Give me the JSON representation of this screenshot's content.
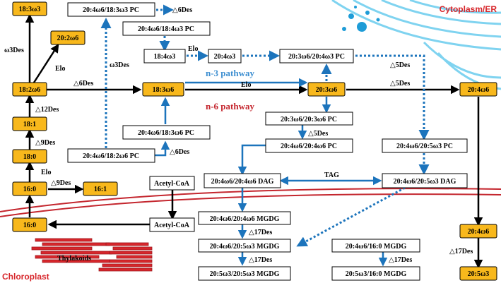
{
  "labels": {
    "cytoplasm": "Cytoplasm/ER",
    "chloroplast": "Chloroplast",
    "thylakoids": "Thylakoids",
    "n3_pathway": "n-3 pathway",
    "n6_pathway": "n-6 pathway"
  },
  "nodes": {
    "n18_3w3": "18:3ω3",
    "n20_2w6": "20:2ω6",
    "n18_2w6": "18:2ω6",
    "n18_1": "18:1",
    "n18_0": "18:0",
    "n16_0a": "16:0",
    "n16_1": "16:1",
    "n16_0b": "16:0",
    "n18_3w6": "18:3ω6",
    "n20_3w6": "20:3ω6",
    "n20_4w6": "20:4ω6",
    "n20_4w6_c": "20:4ω6",
    "n20_5w3": "20:5ω3",
    "pc_18_3w3": "20:4ω6/18:3ω3 PC",
    "pc_18_4w3": "20:4ω6/18:4ω3 PC",
    "n18_4w3": "18:4ω3",
    "n20_4w3": "20:4ω3",
    "pc_20_3w6_20_4w3": "20:3ω6/20:4ω3 PC",
    "pc_20_3w6_20_3w6": "20:3ω6/20:3ω6 PC",
    "pc_20_4w6_20_4w6": "20:4ω6/20:4ω6 PC",
    "pc_20_4w6_18_3w6": "20:4ω6/18:3ω6 PC",
    "pc_20_4w6_18_2w6": "20:4ω6/18:2ω6 PC",
    "pc_20_4w6_20_5w3": "20:4ω6/20:5ω3 PC",
    "dag_20_4w6_20_4w6": "20:4ω6/20:4ω6 DAG",
    "dag_20_4w6_20_5w3": "20:4ω6/20:5ω3 DAG",
    "acetyl_a": "Acetyl-CoA",
    "acetyl_b": "Acetyl-CoA",
    "mgdg_20_4w6_20_4w6": "20:4ω6/20:4ω6 MGDG",
    "mgdg_20_4w6_20_5w3": "20:4ω6/20:5ω3 MGDG",
    "mgdg_20_5w3_20_5w3": "20:5ω3/20:5ω3 MGDG",
    "mgdg_20_4w6_16_0": "20:4ω6/16:0 MGDG",
    "mgdg_20_5w3_16_0": "20:5ω3/16:0 MGDG"
  },
  "edges": {
    "w3des_a": "ω3Des",
    "elo_a": "Elo",
    "d12des": "△12Des",
    "d9des_a": "△9Des",
    "elo_b": "Elo",
    "d9des_b": "△9Des",
    "d6des_a": "△6Des",
    "elo_c": "Elo",
    "d5des_a": "△5Des",
    "d6des_b": "△6Des",
    "elo_d": "Elo",
    "w3des_b": "ω3Des",
    "d5des_b": "△5Des",
    "d5des_c": "△5Des",
    "d6des_c": "△6Des",
    "tag": "TAG",
    "d17des_a": "△17Des",
    "d17des_b": "△17Des",
    "d17des_c": "△17Des",
    "d17des_d": "△17Des"
  },
  "colors": {
    "yellow": "#F8B81C",
    "blue": "#1C74BC",
    "red": "#D7262B",
    "n3_text": "#3E8FD1",
    "n6_text": "#C4262E",
    "black": "#000000"
  }
}
